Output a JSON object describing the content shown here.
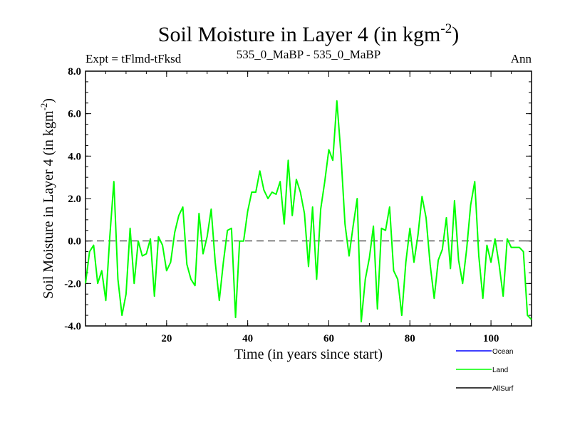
{
  "chart_data": {
    "type": "line",
    "title": "Soil Moisture in Layer 4 (in kgm",
    "title_sup": "-2",
    "title_end": ")",
    "subtitle_left": "Expt = tFlmd-tFksd",
    "subtitle_center": "535_0_MaBP - 535_0_MaBP",
    "subtitle_right": "Ann",
    "xlabel": "Time (in years since start)",
    "ylabel": "Soil Moisture in Layer 4 (in kgm",
    "ylabel_sup": "-2",
    "ylabel_end": ")",
    "xlim": [
      0,
      110
    ],
    "ylim": [
      -4.0,
      8.0
    ],
    "xticks": [
      20,
      40,
      60,
      80,
      100
    ],
    "xtick_labels": [
      "20",
      "40",
      "60",
      "80",
      "100"
    ],
    "yticks": [
      -4.0,
      -2.0,
      0.0,
      2.0,
      4.0,
      6.0,
      8.0
    ],
    "ytick_labels": [
      "-4.0",
      "-2.0",
      "0.0",
      "2.0",
      "4.0",
      "6.0",
      "8.0"
    ],
    "reference_line": 0.0,
    "series": [
      {
        "name": "Ocean",
        "color": "#0000ff",
        "x": [],
        "values": []
      },
      {
        "name": "Land",
        "color": "#00ff00",
        "x": [
          0,
          1,
          2,
          3,
          4,
          5,
          6,
          7,
          8,
          9,
          10,
          11,
          12,
          13,
          14,
          15,
          16,
          17,
          18,
          19,
          20,
          21,
          22,
          23,
          24,
          25,
          26,
          27,
          28,
          29,
          30,
          31,
          32,
          33,
          34,
          35,
          36,
          37,
          38,
          39,
          40,
          41,
          42,
          43,
          44,
          45,
          46,
          47,
          48,
          49,
          50,
          51,
          52,
          53,
          54,
          55,
          56,
          57,
          58,
          59,
          60,
          61,
          62,
          63,
          64,
          65,
          66,
          67,
          68,
          69,
          70,
          71,
          72,
          73,
          74,
          75,
          76,
          77,
          78,
          79,
          80,
          81,
          82,
          83,
          84,
          85,
          86,
          87,
          88,
          89,
          90,
          91,
          92,
          93,
          94,
          95,
          96,
          97,
          98,
          99,
          100,
          101,
          102,
          103,
          104,
          105,
          106,
          107,
          108,
          109,
          110
        ],
        "values": [
          -2.0,
          -0.5,
          -0.2,
          -2.0,
          -1.4,
          -2.8,
          0.2,
          2.8,
          -1.8,
          -3.5,
          -2.5,
          0.6,
          -2.0,
          0.0,
          -0.7,
          -0.6,
          0.1,
          -2.6,
          0.2,
          -0.2,
          -1.4,
          -1.0,
          0.4,
          1.2,
          1.6,
          -1.1,
          -1.8,
          -2.1,
          1.3,
          -0.6,
          0.2,
          1.5,
          -1.0,
          -2.8,
          -1.0,
          0.5,
          0.6,
          -3.6,
          0.0,
          0.0,
          1.4,
          2.3,
          2.3,
          3.3,
          2.4,
          2.0,
          2.3,
          2.2,
          2.8,
          0.8,
          3.8,
          1.2,
          2.9,
          2.3,
          1.3,
          -1.2,
          1.6,
          -1.8,
          1.5,
          2.8,
          4.3,
          3.8,
          6.6,
          4.1,
          0.8,
          -0.7,
          0.7,
          2.0,
          -3.8,
          -1.8,
          -0.8,
          0.7,
          -3.2,
          0.6,
          0.5,
          1.6,
          -1.4,
          -1.8,
          -3.5,
          -1.0,
          0.6,
          -1.0,
          0.3,
          2.1,
          1.1,
          -1.1,
          -2.7,
          -0.9,
          -0.4,
          1.1,
          -1.3,
          1.9,
          -0.9,
          -2.0,
          -0.4,
          1.7,
          2.8,
          -0.7,
          -2.7,
          -0.2,
          -1.0,
          0.1,
          -1.1,
          -2.6,
          0.1,
          -0.3,
          -0.3,
          -0.3,
          -0.5,
          -3.5,
          -3.7
        ]
      },
      {
        "name": "AllSurf",
        "color": "#000000",
        "x": [],
        "values": []
      }
    ],
    "legend_position": "bottom-right"
  }
}
